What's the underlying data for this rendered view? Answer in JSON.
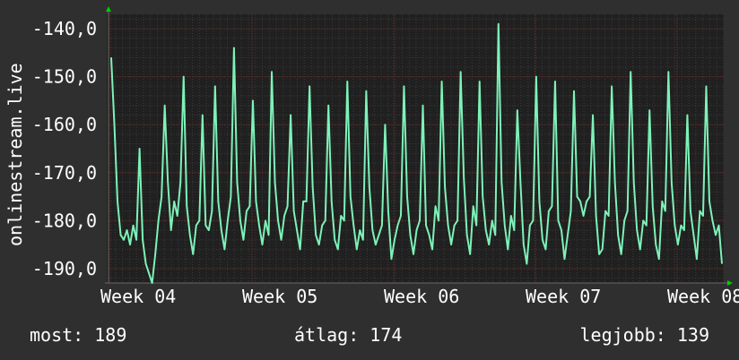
{
  "chart_data": {
    "type": "line",
    "title": "",
    "xlabel": "",
    "ylabel": "onlinestream.live",
    "ylim": [
      -193.0,
      -137.0
    ],
    "y_ticks": [
      -140.0,
      -150.0,
      -160.0,
      -170.0,
      -180.0,
      -190.0
    ],
    "y_tick_labels": [
      "-140,0",
      "-150,0",
      "-160,0",
      "-170,0",
      "-180,0",
      "-190,0"
    ],
    "x_tick_labels": [
      "Week 04",
      "Week 05",
      "Week 06",
      "Week 07",
      "Week 08"
    ],
    "grid": true,
    "colors": {
      "background": "#2f2f2f",
      "plot_background": "#202020",
      "line": "#7df2b8",
      "grid_major": "#5a2a2a",
      "grid_minor": "#3a3a3a",
      "axis": "#6a6a6a",
      "arrow": "#00cc00",
      "text": "#ffffff"
    },
    "series": [
      {
        "values": [
          -146,
          -160,
          -176,
          -183,
          -184,
          -182,
          -185,
          -181,
          -184,
          -165,
          -184,
          -189,
          -191,
          -193,
          -187,
          -180,
          -175,
          -156,
          -172,
          -182,
          -176,
          -179,
          -172,
          -150,
          -177,
          -183,
          -187,
          -181,
          -180,
          -158,
          -181,
          -182,
          -178,
          -152,
          -176,
          -182,
          -186,
          -180,
          -175,
          -144,
          -172,
          -180,
          -184,
          -178,
          -177,
          -155,
          -176,
          -181,
          -185,
          -180,
          -183,
          -149,
          -172,
          -180,
          -184,
          -179,
          -177,
          -158,
          -178,
          -182,
          -186,
          -176,
          -176,
          -152,
          -173,
          -183,
          -185,
          -181,
          -180,
          -156,
          -176,
          -184,
          -186,
          -179,
          -180,
          -151,
          -175,
          -181,
          -186,
          -182,
          -184,
          -153,
          -173,
          -182,
          -185,
          -183,
          -181,
          -160,
          -178,
          -188,
          -184,
          -181,
          -179,
          -152,
          -175,
          -183,
          -187,
          -182,
          -180,
          -156,
          -181,
          -183,
          -186,
          -177,
          -180,
          -151,
          -173,
          -181,
          -185,
          -181,
          -180,
          -149,
          -171,
          -183,
          -187,
          -177,
          -181,
          -151,
          -175,
          -182,
          -185,
          -180,
          -183,
          -139,
          -172,
          -181,
          -186,
          -179,
          -182,
          -157,
          -172,
          -185,
          -189,
          -181,
          -180,
          -150,
          -176,
          -184,
          -186,
          -178,
          -177,
          -151,
          -180,
          -182,
          -188,
          -183,
          -178,
          -153,
          -175,
          -176,
          -179,
          -176,
          -175,
          -158,
          -179,
          -187,
          -186,
          -178,
          -179,
          -152,
          -172,
          -183,
          -187,
          -180,
          -178,
          -149,
          -172,
          -182,
          -186,
          -180,
          -181,
          -157,
          -177,
          -185,
          -188,
          -176,
          -178,
          -149,
          -172,
          -181,
          -185,
          -181,
          -182,
          -158,
          -178,
          -183,
          -188,
          -178,
          -179,
          -152,
          -176,
          -180,
          -183,
          -181,
          -189
        ]
      }
    ]
  },
  "footer": {
    "current": "most: 189",
    "average": "átlag: 174",
    "best": "legjobb: 139"
  }
}
